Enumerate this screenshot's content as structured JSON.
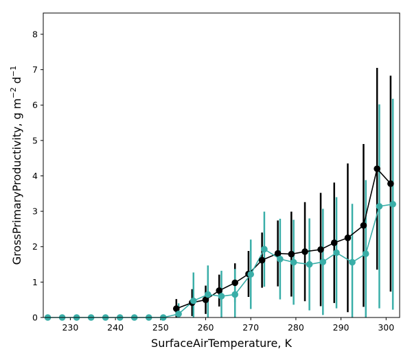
{
  "chart_data": {
    "type": "line",
    "xlabel": "SurfaceAirTemperature,  K",
    "ylabel_main": "GrossPrimaryProductivity,  g m",
    "ylabel_exp1": "−2",
    "ylabel_mid": " d",
    "ylabel_exp2": "−1",
    "xlim": [
      224,
      303
    ],
    "ylim": [
      0,
      8.6
    ],
    "xticks": [
      230,
      240,
      250,
      260,
      270,
      280,
      290,
      300
    ],
    "yticks": [
      0,
      1,
      2,
      3,
      4,
      5,
      6,
      7,
      8
    ],
    "grid": false,
    "series": [
      {
        "name": "black",
        "color": "#000000",
        "x": [
          253.5,
          257,
          260,
          263,
          266.5,
          269.5,
          272.5,
          276,
          279,
          282,
          285.5,
          288.5,
          291.5,
          295,
          298,
          301
        ],
        "y": [
          0.25,
          0.42,
          0.5,
          0.76,
          0.98,
          1.23,
          1.62,
          1.81,
          1.79,
          1.86,
          1.92,
          2.11,
          2.25,
          2.6,
          4.2,
          3.78
        ],
        "err": [
          0.27,
          0.38,
          0.4,
          0.45,
          0.55,
          0.65,
          0.78,
          0.93,
          1.2,
          1.4,
          1.6,
          1.7,
          2.1,
          2.3,
          2.85,
          3.05
        ]
      },
      {
        "name": "teal",
        "color": "#3aaea8",
        "x": [
          225,
          228.2,
          231.4,
          234.6,
          237.8,
          241,
          244.2,
          247.4,
          250.6,
          254,
          257.3,
          260.5,
          263.5,
          266.5,
          270,
          273,
          276.5,
          279.5,
          283,
          286,
          289,
          292.5,
          295.5,
          298.5,
          301.5
        ],
        "y": [
          0,
          0,
          0,
          0,
          0,
          0,
          0,
          0,
          0,
          0.1,
          0.47,
          0.65,
          0.6,
          0.65,
          1.22,
          1.93,
          1.65,
          1.56,
          1.5,
          1.57,
          1.83,
          1.56,
          1.8,
          3.14,
          3.2
        ],
        "err": [
          0,
          0,
          0,
          0,
          0,
          0,
          0,
          0,
          0,
          0.3,
          0.8,
          0.82,
          0.72,
          0.72,
          0.98,
          1.06,
          1.14,
          1.2,
          1.3,
          1.5,
          1.57,
          1.65,
          2.08,
          2.88,
          2.98
        ]
      }
    ]
  }
}
